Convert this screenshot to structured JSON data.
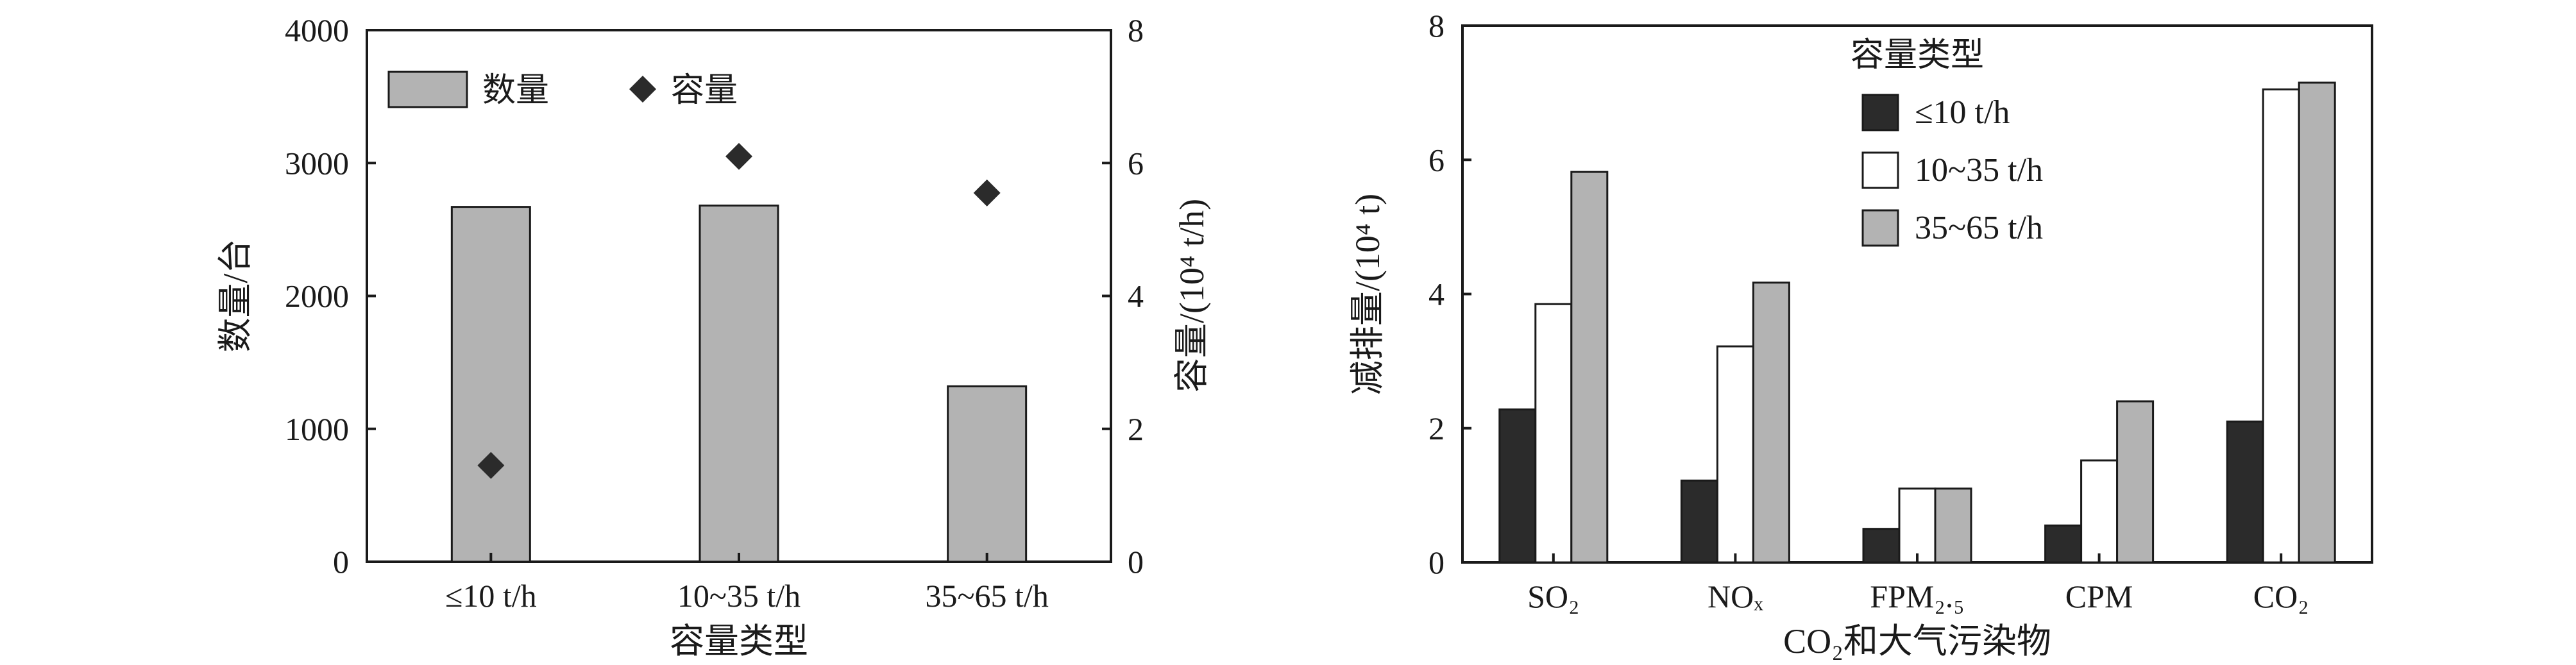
{
  "chart_data": [
    {
      "type": "bar",
      "categories": [
        "≤10 t/h",
        "10~35 t/h",
        "35~65 t/h"
      ],
      "series": [
        {
          "name": "数量",
          "axis": "left",
          "kind": "bar",
          "values": [
            2670,
            2680,
            1320
          ],
          "color": "#b3b3b3"
        },
        {
          "name": "容量",
          "axis": "right",
          "kind": "scatter",
          "marker": "diamond",
          "values": [
            1.45,
            6.1,
            5.55
          ],
          "color": "#2b2b2b"
        }
      ],
      "xlabel": "容量类型",
      "ylabel": "数量/台",
      "ylabel_right": "容量/(10⁴ t/h)",
      "ylim": [
        0,
        4000
      ],
      "ylim_right": [
        0,
        8
      ],
      "yticks": [
        "0",
        "1000",
        "2000",
        "3000",
        "4000"
      ],
      "yticks_right": [
        "0",
        "2",
        "4",
        "6",
        "8"
      ],
      "legend_position": "top-left"
    },
    {
      "type": "bar",
      "categories": [
        "SO₂",
        "NOₓ",
        "FPM₂.₅",
        "CPM",
        "CO₂"
      ],
      "series": [
        {
          "name": "≤10 t/h",
          "values": [
            2.28,
            1.22,
            0.5,
            0.55,
            2.1
          ],
          "color": "#2b2b2b"
        },
        {
          "name": "10~35 t/h",
          "values": [
            3.85,
            3.22,
            1.1,
            1.52,
            7.05
          ],
          "color": "#ffffff"
        },
        {
          "name": "35~65 t/h",
          "values": [
            5.82,
            4.17,
            1.1,
            2.4,
            7.15
          ],
          "color": "#b3b3b3"
        }
      ],
      "xlabel": "CO₂和大气污染物",
      "ylabel": "减排量/(10⁴ t)",
      "ylim": [
        0,
        8
      ],
      "yticks": [
        "0",
        "2",
        "4",
        "6",
        "8"
      ],
      "legend_title": "容量类型",
      "legend_position": "top-center"
    }
  ]
}
